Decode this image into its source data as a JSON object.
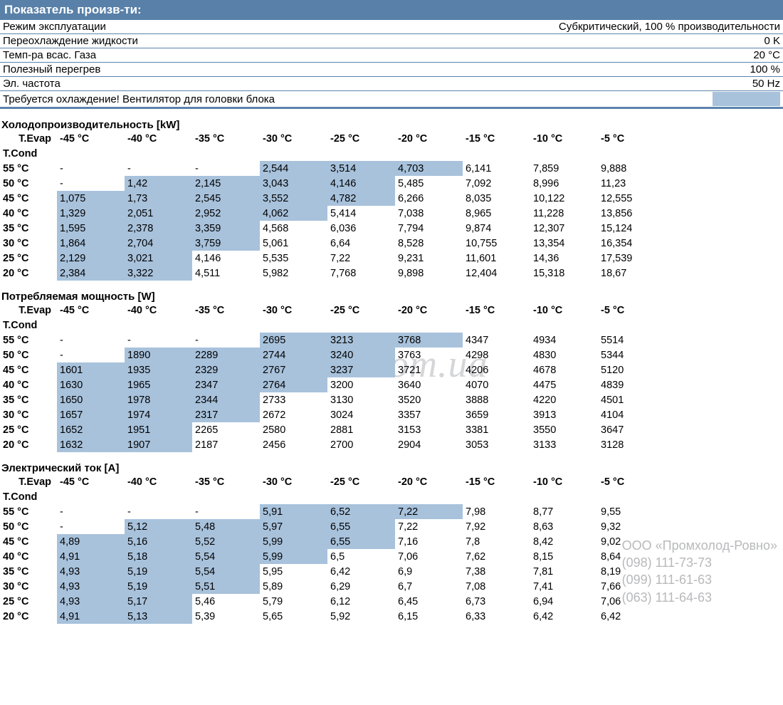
{
  "colors": {
    "header_bg": "#5880a8",
    "header_text": "#ffffff",
    "border": "#5b83ad",
    "highlight_bg": "#a8c2dc",
    "watermark": "#d5d6d8",
    "contact": "#b8b9bb",
    "text": "#000000",
    "page_bg": "#ffffff"
  },
  "header": "Показатель произв-ти:",
  "params": [
    {
      "label": "Режим эксплуатации",
      "value": "Субкритический, 100 % производительности"
    },
    {
      "label": "Переохлаждение жидкости",
      "value": "0 K"
    },
    {
      "label": "Темп-ра всас. Газа",
      "value": "20 °C"
    },
    {
      "label": "Полезный перегрев",
      "value": "100 %"
    },
    {
      "label": "Эл. частота",
      "value": "50 Hz"
    }
  ],
  "cooling_note": "Требуется охлаждение! Вентилятор для головки блока",
  "col_header_label": "T.Evap",
  "row_header_label": "T.Cond",
  "evap_columns": [
    "-45 °C",
    "-40 °C",
    "-35 °C",
    "-30 °C",
    "-25 °C",
    "-20 °C",
    "-15 °C",
    "-10 °C",
    "-5 °C"
  ],
  "cond_rows": [
    "55 °C",
    "50 °C",
    "45 °C",
    "40 °C",
    "35 °C",
    "30 °C",
    "25 °C",
    "20 °C"
  ],
  "tables": [
    {
      "title": "Холодопроизводительность [kW]",
      "rows": [
        [
          {
            "v": "-"
          },
          {
            "v": "-"
          },
          {
            "v": "-"
          },
          {
            "v": "2,544",
            "h": 1
          },
          {
            "v": "3,514",
            "h": 1
          },
          {
            "v": "4,703",
            "h": 1
          },
          {
            "v": "6,141"
          },
          {
            "v": "7,859"
          },
          {
            "v": "9,888"
          }
        ],
        [
          {
            "v": "-"
          },
          {
            "v": "1,42",
            "h": 1
          },
          {
            "v": "2,145",
            "h": 1
          },
          {
            "v": "3,043",
            "h": 1
          },
          {
            "v": "4,146",
            "h": 1
          },
          {
            "v": "5,485"
          },
          {
            "v": "7,092"
          },
          {
            "v": "8,996"
          },
          {
            "v": "11,23"
          }
        ],
        [
          {
            "v": "1,075",
            "h": 1
          },
          {
            "v": "1,73",
            "h": 1
          },
          {
            "v": "2,545",
            "h": 1
          },
          {
            "v": "3,552",
            "h": 1
          },
          {
            "v": "4,782",
            "h": 1
          },
          {
            "v": "6,266"
          },
          {
            "v": "8,035"
          },
          {
            "v": "10,122"
          },
          {
            "v": "12,555"
          }
        ],
        [
          {
            "v": "1,329",
            "h": 1
          },
          {
            "v": "2,051",
            "h": 1
          },
          {
            "v": "2,952",
            "h": 1
          },
          {
            "v": "4,062",
            "h": 1
          },
          {
            "v": "5,414"
          },
          {
            "v": "7,038"
          },
          {
            "v": "8,965"
          },
          {
            "v": "11,228"
          },
          {
            "v": "13,856"
          }
        ],
        [
          {
            "v": "1,595",
            "h": 1
          },
          {
            "v": "2,378",
            "h": 1
          },
          {
            "v": "3,359",
            "h": 1
          },
          {
            "v": "4,568"
          },
          {
            "v": "6,036"
          },
          {
            "v": "7,794"
          },
          {
            "v": "9,874"
          },
          {
            "v": "12,307"
          },
          {
            "v": "15,124"
          }
        ],
        [
          {
            "v": "1,864",
            "h": 1
          },
          {
            "v": "2,704",
            "h": 1
          },
          {
            "v": "3,759",
            "h": 1
          },
          {
            "v": "5,061"
          },
          {
            "v": "6,64"
          },
          {
            "v": "8,528"
          },
          {
            "v": "10,755"
          },
          {
            "v": "13,354"
          },
          {
            "v": "16,354"
          }
        ],
        [
          {
            "v": "2,129",
            "h": 1
          },
          {
            "v": "3,021",
            "h": 1
          },
          {
            "v": "4,146"
          },
          {
            "v": "5,535"
          },
          {
            "v": "7,22"
          },
          {
            "v": "9,231"
          },
          {
            "v": "11,601"
          },
          {
            "v": "14,36"
          },
          {
            "v": "17,539"
          }
        ],
        [
          {
            "v": "2,384",
            "h": 1
          },
          {
            "v": "3,322",
            "h": 1
          },
          {
            "v": "4,511"
          },
          {
            "v": "5,982"
          },
          {
            "v": "7,768"
          },
          {
            "v": "9,898"
          },
          {
            "v": "12,404"
          },
          {
            "v": "15,318"
          },
          {
            "v": "18,67"
          }
        ]
      ]
    },
    {
      "title": "Потребляемая мощность [W]",
      "rows": [
        [
          {
            "v": "-"
          },
          {
            "v": "-"
          },
          {
            "v": "-"
          },
          {
            "v": "2695",
            "h": 1
          },
          {
            "v": "3213",
            "h": 1
          },
          {
            "v": "3768",
            "h": 1
          },
          {
            "v": "4347"
          },
          {
            "v": "4934"
          },
          {
            "v": "5514"
          }
        ],
        [
          {
            "v": "-"
          },
          {
            "v": "1890",
            "h": 1
          },
          {
            "v": "2289",
            "h": 1
          },
          {
            "v": "2744",
            "h": 1
          },
          {
            "v": "3240",
            "h": 1
          },
          {
            "v": "3763"
          },
          {
            "v": "4298"
          },
          {
            "v": "4830"
          },
          {
            "v": "5344"
          }
        ],
        [
          {
            "v": "1601",
            "h": 1
          },
          {
            "v": "1935",
            "h": 1
          },
          {
            "v": "2329",
            "h": 1
          },
          {
            "v": "2767",
            "h": 1
          },
          {
            "v": "3237",
            "h": 1
          },
          {
            "v": "3721"
          },
          {
            "v": "4206"
          },
          {
            "v": "4678"
          },
          {
            "v": "5120"
          }
        ],
        [
          {
            "v": "1630",
            "h": 1
          },
          {
            "v": "1965",
            "h": 1
          },
          {
            "v": "2347",
            "h": 1
          },
          {
            "v": "2764",
            "h": 1
          },
          {
            "v": "3200"
          },
          {
            "v": "3640"
          },
          {
            "v": "4070"
          },
          {
            "v": "4475"
          },
          {
            "v": "4839"
          }
        ],
        [
          {
            "v": "1650",
            "h": 1
          },
          {
            "v": "1978",
            "h": 1
          },
          {
            "v": "2344",
            "h": 1
          },
          {
            "v": "2733"
          },
          {
            "v": "3130"
          },
          {
            "v": "3520"
          },
          {
            "v": "3888"
          },
          {
            "v": "4220"
          },
          {
            "v": "4501"
          }
        ],
        [
          {
            "v": "1657",
            "h": 1
          },
          {
            "v": "1974",
            "h": 1
          },
          {
            "v": "2317",
            "h": 1
          },
          {
            "v": "2672"
          },
          {
            "v": "3024"
          },
          {
            "v": "3357"
          },
          {
            "v": "3659"
          },
          {
            "v": "3913"
          },
          {
            "v": "4104"
          }
        ],
        [
          {
            "v": "1652",
            "h": 1
          },
          {
            "v": "1951",
            "h": 1
          },
          {
            "v": "2265"
          },
          {
            "v": "2580"
          },
          {
            "v": "2881"
          },
          {
            "v": "3153"
          },
          {
            "v": "3381"
          },
          {
            "v": "3550"
          },
          {
            "v": "3647"
          }
        ],
        [
          {
            "v": "1632",
            "h": 1
          },
          {
            "v": "1907",
            "h": 1
          },
          {
            "v": "2187"
          },
          {
            "v": "2456"
          },
          {
            "v": "2700"
          },
          {
            "v": "2904"
          },
          {
            "v": "3053"
          },
          {
            "v": "3133"
          },
          {
            "v": "3128"
          }
        ]
      ]
    },
    {
      "title": "Электрический ток [A]",
      "rows": [
        [
          {
            "v": "-"
          },
          {
            "v": "-"
          },
          {
            "v": "-"
          },
          {
            "v": "5,91",
            "h": 1
          },
          {
            "v": "6,52",
            "h": 1
          },
          {
            "v": "7,22",
            "h": 1
          },
          {
            "v": "7,98"
          },
          {
            "v": "8,77"
          },
          {
            "v": "9,55"
          }
        ],
        [
          {
            "v": "-"
          },
          {
            "v": "5,12",
            "h": 1
          },
          {
            "v": "5,48",
            "h": 1
          },
          {
            "v": "5,97",
            "h": 1
          },
          {
            "v": "6,55",
            "h": 1
          },
          {
            "v": "7,22"
          },
          {
            "v": "7,92"
          },
          {
            "v": "8,63"
          },
          {
            "v": "9,32"
          }
        ],
        [
          {
            "v": "4,89",
            "h": 1
          },
          {
            "v": "5,16",
            "h": 1
          },
          {
            "v": "5,52",
            "h": 1
          },
          {
            "v": "5,99",
            "h": 1
          },
          {
            "v": "6,55",
            "h": 1
          },
          {
            "v": "7,16"
          },
          {
            "v": "7,8"
          },
          {
            "v": "8,42"
          },
          {
            "v": "9,02"
          }
        ],
        [
          {
            "v": "4,91",
            "h": 1
          },
          {
            "v": "5,18",
            "h": 1
          },
          {
            "v": "5,54",
            "h": 1
          },
          {
            "v": "5,99",
            "h": 1
          },
          {
            "v": "6,5"
          },
          {
            "v": "7,06"
          },
          {
            "v": "7,62"
          },
          {
            "v": "8,15"
          },
          {
            "v": "8,64"
          }
        ],
        [
          {
            "v": "4,93",
            "h": 1
          },
          {
            "v": "5,19",
            "h": 1
          },
          {
            "v": "5,54",
            "h": 1
          },
          {
            "v": "5,95"
          },
          {
            "v": "6,42"
          },
          {
            "v": "6,9"
          },
          {
            "v": "7,38"
          },
          {
            "v": "7,81"
          },
          {
            "v": "8,19"
          }
        ],
        [
          {
            "v": "4,93",
            "h": 1
          },
          {
            "v": "5,19",
            "h": 1
          },
          {
            "v": "5,51",
            "h": 1
          },
          {
            "v": "5,89"
          },
          {
            "v": "6,29"
          },
          {
            "v": "6,7"
          },
          {
            "v": "7,08"
          },
          {
            "v": "7,41"
          },
          {
            "v": "7,66"
          }
        ],
        [
          {
            "v": "4,93",
            "h": 1
          },
          {
            "v": "5,17",
            "h": 1
          },
          {
            "v": "5,46"
          },
          {
            "v": "5,79"
          },
          {
            "v": "6,12"
          },
          {
            "v": "6,45"
          },
          {
            "v": "6,73"
          },
          {
            "v": "6,94"
          },
          {
            "v": "7,06"
          }
        ],
        [
          {
            "v": "4,91",
            "h": 1
          },
          {
            "v": "5,13",
            "h": 1
          },
          {
            "v": "5,39"
          },
          {
            "v": "5,65"
          },
          {
            "v": "5,92"
          },
          {
            "v": "6,15"
          },
          {
            "v": "6,33"
          },
          {
            "v": "6,42"
          },
          {
            "v": "6,42"
          }
        ]
      ]
    }
  ],
  "watermark": "www.pholod.com.ua",
  "contact": {
    "company": "ООО «Промхолод-Ровно»",
    "phones": [
      "(098) 111-73-73",
      "(099) 111-61-63",
      "(063) 111-64-63"
    ]
  }
}
